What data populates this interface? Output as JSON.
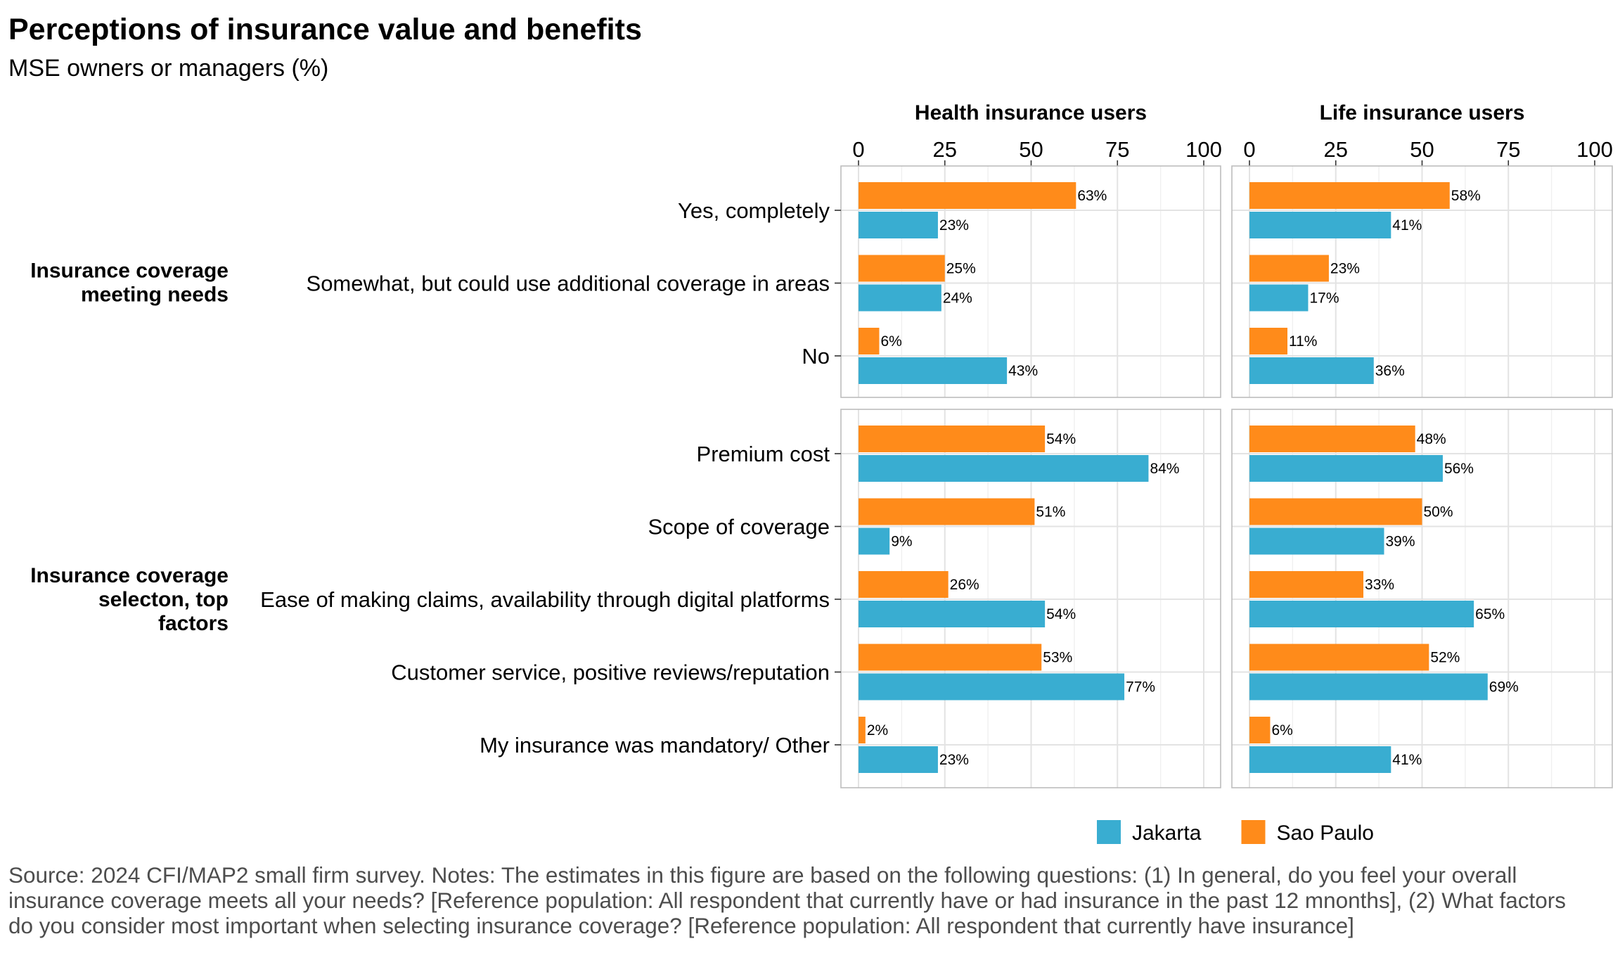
{
  "title": "Perceptions of insurance value and benefits",
  "subtitle": "MSE owners or managers (%)",
  "source_note": "Source: 2024 CFI/MAP2 small firm survey. Notes: The estimates in this figure are based on the following questions: (1) In general, do you feel your overall insurance coverage meets all your needs? [Reference population: All respondent that currently have or had insurance in the past 12 mnonths], (2) What factors do you consider most important when selecting insurance coverage? [Reference population: All respondent that currently have insurance]",
  "chart_data": {
    "type": "bar",
    "orientation": "horizontal",
    "facets": [
      "Health insurance users",
      "Life insurance users"
    ],
    "xlim": [
      0,
      100
    ],
    "xticks": [
      "0",
      "25",
      "50",
      "75",
      "100"
    ],
    "grid": true,
    "legend": {
      "position": "bottom-right",
      "entries": [
        {
          "name": "Jakarta",
          "color": "#39ADD1"
        },
        {
          "name": "Sao Paulo",
          "color": "#FF8B1A"
        }
      ]
    },
    "groups": [
      {
        "label": "Insurance coverage meeting needs",
        "label_lines": [
          "Insurance coverage",
          "meeting needs"
        ],
        "categories": [
          {
            "label": "Yes, completely",
            "sao_paulo": [
              63,
              58
            ],
            "jakarta": [
              23,
              41
            ]
          },
          {
            "label": "Somewhat, but could use additional coverage in areas",
            "sao_paulo": [
              25,
              23
            ],
            "jakarta": [
              24,
              17
            ]
          },
          {
            "label": "No",
            "sao_paulo": [
              6,
              11
            ],
            "jakarta": [
              43,
              36
            ]
          }
        ]
      },
      {
        "label": "Insurance coverage selecton, top factors",
        "label_lines": [
          "Insurance coverage",
          "selecton, top",
          "factors"
        ],
        "categories": [
          {
            "label": "Premium cost",
            "sao_paulo": [
              54,
              48
            ],
            "jakarta": [
              84,
              56
            ]
          },
          {
            "label": "Scope of coverage",
            "sao_paulo": [
              51,
              50
            ],
            "jakarta": [
              9,
              39
            ]
          },
          {
            "label": "Ease of making claims, availability through digital platforms",
            "sao_paulo": [
              26,
              33
            ],
            "jakarta": [
              54,
              65
            ]
          },
          {
            "label": "Customer service, positive reviews/reputation",
            "sao_paulo": [
              53,
              52
            ],
            "jakarta": [
              77,
              69
            ]
          },
          {
            "label": "My insurance was mandatory/ Other",
            "sao_paulo": [
              2,
              6
            ],
            "jakarta": [
              23,
              41
            ]
          }
        ]
      }
    ],
    "value_suffix": "%"
  }
}
